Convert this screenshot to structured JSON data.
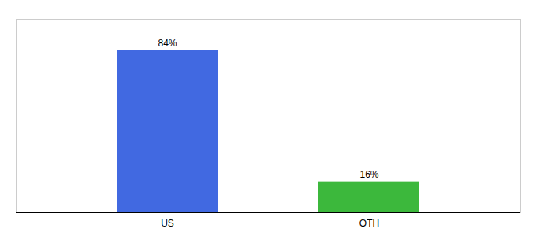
{
  "chart_data": {
    "type": "bar",
    "categories": [
      "US",
      "OTH"
    ],
    "values": [
      84,
      16
    ],
    "value_labels": [
      "84%",
      "16%"
    ],
    "colors": [
      "#4169e1",
      "#3cb83c"
    ],
    "ylim": [
      0,
      100
    ],
    "yticks": [],
    "data_labels": true,
    "tick_labels": "x",
    "grid": false
  }
}
